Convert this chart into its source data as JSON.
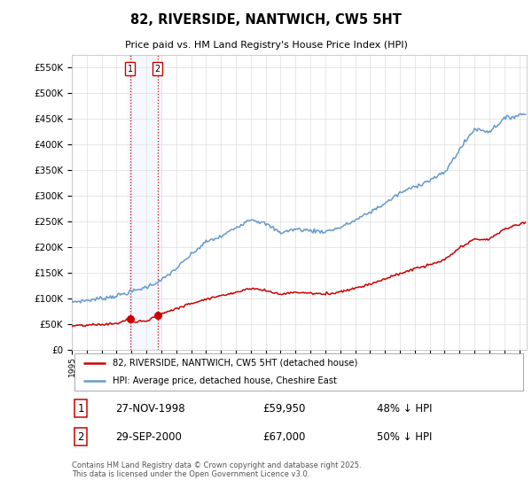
{
  "title": "82, RIVERSIDE, NANTWICH, CW5 5HT",
  "subtitle": "Price paid vs. HM Land Registry's House Price Index (HPI)",
  "ylim": [
    0,
    575000
  ],
  "yticks": [
    0,
    50000,
    100000,
    150000,
    200000,
    250000,
    300000,
    350000,
    400000,
    450000,
    500000,
    550000
  ],
  "ytick_labels": [
    "£0",
    "£50K",
    "£100K",
    "£150K",
    "£200K",
    "£250K",
    "£300K",
    "£350K",
    "£400K",
    "£450K",
    "£500K",
    "£550K"
  ],
  "x_start_year": 1995,
  "x_end_year": 2025,
  "line1_label": "82, RIVERSIDE, NANTWICH, CW5 5HT (detached house)",
  "line2_label": "HPI: Average price, detached house, Cheshire East",
  "line1_color": "#cc0000",
  "line2_color": "#6699cc",
  "transaction1_x": 1998.92,
  "transaction1_price": 59950,
  "transaction1_date": "27-NOV-1998",
  "transaction1_hpi_text": "48% ↓ HPI",
  "transaction2_x": 2000.75,
  "transaction2_price": 67000,
  "transaction2_date": "29-SEP-2000",
  "transaction2_hpi_text": "50% ↓ HPI",
  "footnote": "Contains HM Land Registry data © Crown copyright and database right 2025.\nThis data is licensed under the Open Government Licence v3.0.",
  "background_color": "#ffffff",
  "plot_bg_color": "#ffffff",
  "grid_color": "#dddddd",
  "shade_color": "#cce0ff",
  "hpi_years": [
    1995,
    1996,
    1997,
    1998,
    1999,
    2000,
    2001,
    2002,
    2003,
    2004,
    2005,
    2006,
    2007,
    2008,
    2009,
    2010,
    2011,
    2012,
    2013,
    2014,
    2015,
    2016,
    2017,
    2018,
    2019,
    2020,
    2021,
    2022,
    2023,
    2024,
    2025.4
  ],
  "hpi_vals": [
    93000,
    96000,
    100000,
    105000,
    113000,
    122000,
    135000,
    158000,
    185000,
    210000,
    220000,
    238000,
    255000,
    245000,
    228000,
    235000,
    232000,
    230000,
    238000,
    252000,
    268000,
    285000,
    305000,
    318000,
    330000,
    345000,
    390000,
    430000,
    425000,
    450000,
    460000
  ],
  "prop_years": [
    1995,
    1996,
    1997,
    1998,
    1998.92,
    1999,
    2000,
    2000.75,
    2001,
    2002,
    2003,
    2004,
    2005,
    2006,
    2007,
    2008,
    2009,
    2010,
    2011,
    2012,
    2013,
    2014,
    2015,
    2016,
    2017,
    2018,
    2019,
    2020,
    2021,
    2022,
    2023,
    2024,
    2025.4
  ],
  "prop_vals": [
    46000,
    47500,
    49000,
    51000,
    59950,
    53000,
    56000,
    67000,
    70000,
    80000,
    90000,
    99000,
    105000,
    112000,
    120000,
    115000,
    108000,
    112000,
    110000,
    108000,
    113000,
    120000,
    128000,
    138000,
    148000,
    158000,
    165000,
    175000,
    198000,
    215000,
    215000,
    235000,
    248000
  ]
}
